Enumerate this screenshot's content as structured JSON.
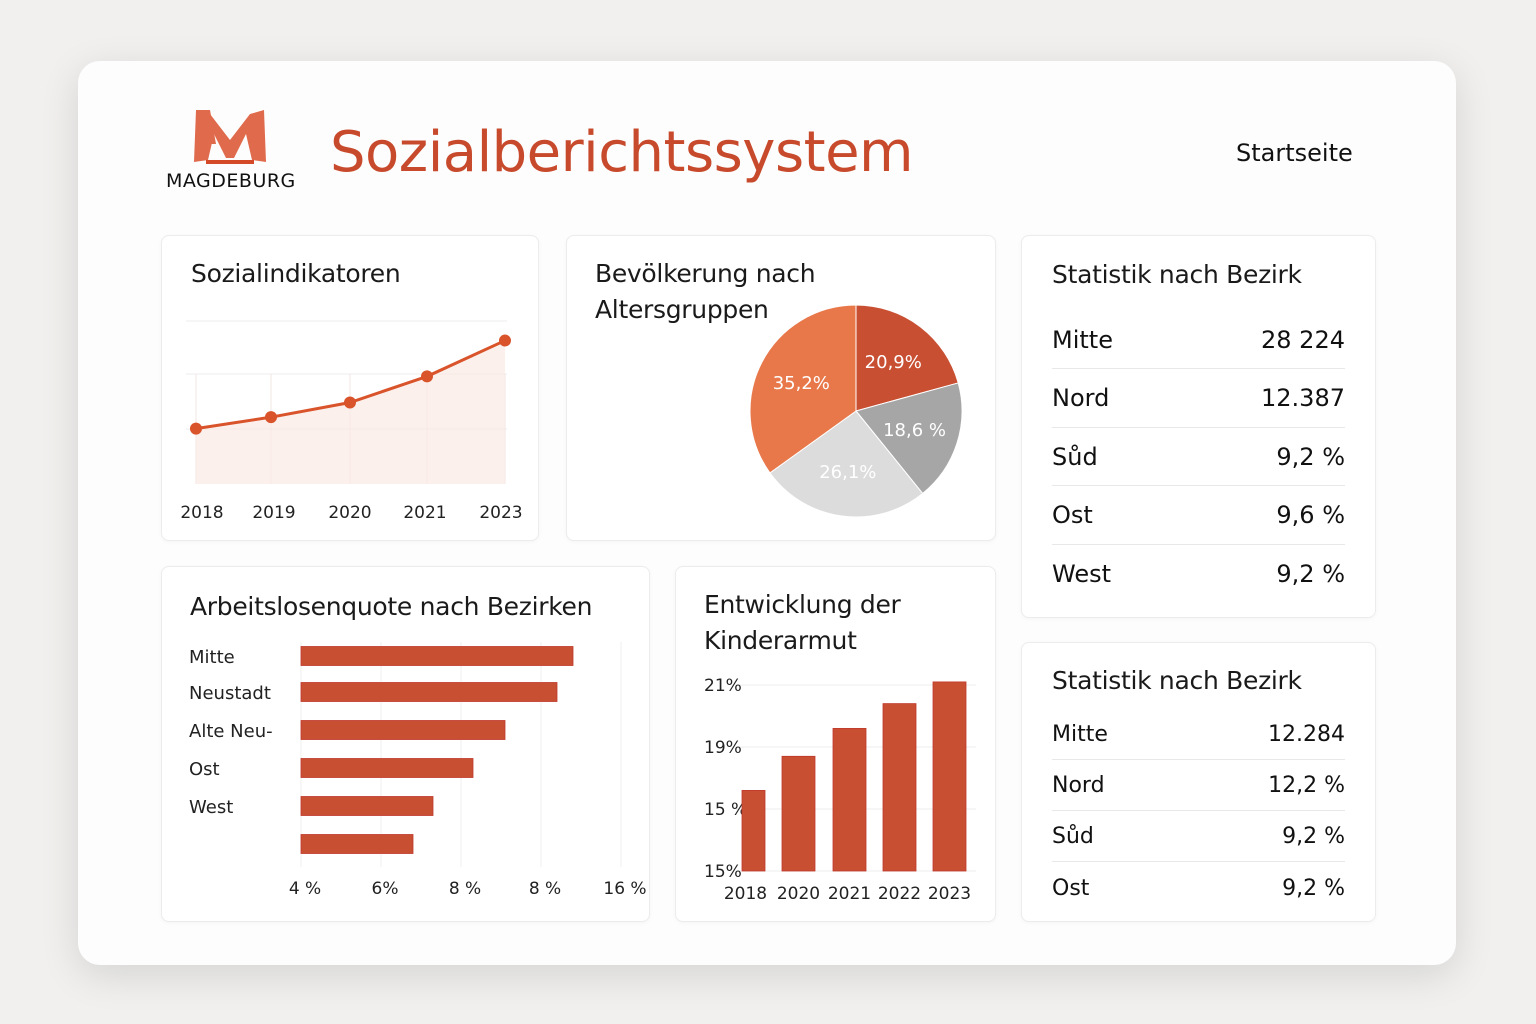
{
  "header": {
    "logo_text": "MAGDEBURG",
    "title": "Sozialberichtssystem",
    "nav_home": "Startseite"
  },
  "colors": {
    "accent": "#c94f33",
    "orange": "#e8784a",
    "gray": "#a6a6a6",
    "light_gray": "#dcdcdc"
  },
  "cards": {
    "indicators": {
      "title": "Sozialindikatoren"
    },
    "population": {
      "title_line1": "Bevölkerung nach",
      "title_line2": "Altersgruppen"
    },
    "unemployment": {
      "title": "Arbeitslosenquote nach Bezirken"
    },
    "child_poverty": {
      "title_line1": "Entwicklung der",
      "title_line2": "Kinderarmut"
    },
    "stats1": {
      "title": "Statistik nach Bezirk",
      "rows": [
        {
          "name": "Mitte",
          "value": "28 224"
        },
        {
          "name": "Nord",
          "value": "12.387"
        },
        {
          "name": "Sůd",
          "value": "9,2 %"
        },
        {
          "name": "Ost",
          "value": "9,6 %"
        },
        {
          "name": "West",
          "value": "9,2 %"
        }
      ]
    },
    "stats2": {
      "title": "Statistik nach Bezirk",
      "rows": [
        {
          "name": "Mitte",
          "value": "12.284"
        },
        {
          "name": "Nord",
          "value": "12,2 %"
        },
        {
          "name": "Sůd",
          "value": "9,2 %"
        },
        {
          "name": "Ost",
          "value": "9,2 %"
        }
      ]
    }
  },
  "chart_data": [
    {
      "type": "area",
      "title": "Sozialindikatoren",
      "x": [
        "2018",
        "2019",
        "2020",
        "2021",
        "2023"
      ],
      "values": [
        34,
        41,
        50,
        66,
        88
      ],
      "ylim": [
        0,
        100
      ],
      "grid": true,
      "color": "#d9532b"
    },
    {
      "type": "pie",
      "title": "Bevölkerung nach Altersgruppen",
      "slices": [
        {
          "label": "20,9%",
          "value": 20.9,
          "color": "#c94f33"
        },
        {
          "label": "18,6 %",
          "value": 18.6,
          "color": "#a6a6a6"
        },
        {
          "label": "26,1%",
          "value": 26.1,
          "color": "#dcdcdc"
        },
        {
          "label": "35,2%",
          "value": 35.2,
          "color": "#e8784a"
        }
      ]
    },
    {
      "type": "bar",
      "orientation": "horizontal",
      "title": "Arbeitslosenquote nach Bezirken",
      "categories": [
        "Mitte",
        "Neustadt",
        "Alte Neu-",
        "Ost",
        "West",
        ""
      ],
      "values": [
        10.8,
        10.4,
        9.1,
        8.3,
        7.3,
        6.8
      ],
      "xlim": [
        4,
        12
      ],
      "tick_labels": [
        "4 %",
        "6%",
        "8 %",
        "8 %",
        "16 %"
      ],
      "grid": true,
      "color": "#c94f33"
    },
    {
      "type": "bar",
      "title": "Entwicklung der Kinderarmut",
      "categories": [
        "2018",
        "2020",
        "2021",
        "2022",
        "2023"
      ],
      "values": [
        17.6,
        18.7,
        19.6,
        20.4,
        21.1
      ],
      "ylim": [
        15,
        21
      ],
      "tick_labels": [
        "21%",
        "19%",
        "15 %",
        "15%"
      ],
      "grid": true,
      "color": "#c94f33"
    }
  ]
}
